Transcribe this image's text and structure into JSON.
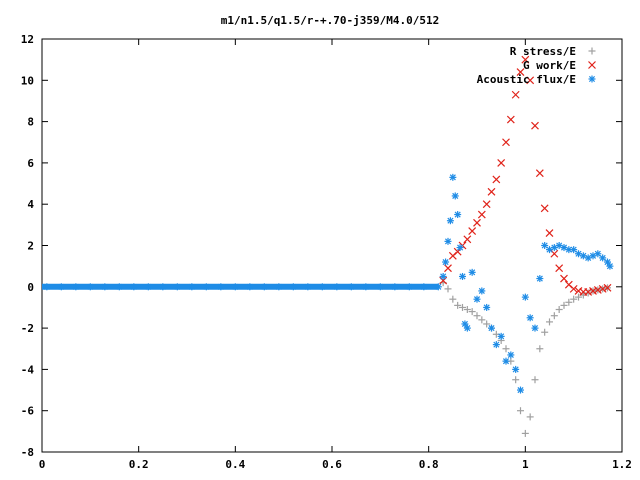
{
  "chart_data": {
    "type": "scatter",
    "title": "m1/n1.5/q1.5/r-+.70-j359/M4.0/512",
    "xlabel": "",
    "ylabel": "",
    "xlim": [
      0,
      1.2
    ],
    "ylim": [
      -8,
      12
    ],
    "x_ticks": [
      "0",
      "0.2",
      "0.4",
      "0.6",
      "0.8",
      "1",
      "1.2"
    ],
    "y_ticks": [
      "-8",
      "-6",
      "-4",
      "-2",
      "0",
      "2",
      "4",
      "6",
      "8",
      "10",
      "12"
    ],
    "legend": "top-right",
    "grid": false,
    "series": [
      {
        "name": "R stress/E",
        "marker": "plus",
        "color": "#a0a0a0",
        "points": [
          [
            0.83,
            0.2
          ],
          [
            0.84,
            -0.1
          ],
          [
            0.85,
            -0.6
          ],
          [
            0.86,
            -0.9
          ],
          [
            0.87,
            -1.0
          ],
          [
            0.88,
            -1.1
          ],
          [
            0.89,
            -1.2
          ],
          [
            0.9,
            -1.4
          ],
          [
            0.91,
            -1.6
          ],
          [
            0.92,
            -1.8
          ],
          [
            0.93,
            -2.0
          ],
          [
            0.94,
            -2.3
          ],
          [
            0.95,
            -2.6
          ],
          [
            0.96,
            -3.0
          ],
          [
            0.97,
            -3.6
          ],
          [
            0.98,
            -4.5
          ],
          [
            0.99,
            -6.0
          ],
          [
            1.0,
            -7.1
          ],
          [
            1.01,
            -6.3
          ],
          [
            1.02,
            -4.5
          ],
          [
            1.03,
            -3.0
          ],
          [
            1.04,
            -2.2
          ],
          [
            1.05,
            -1.7
          ],
          [
            1.06,
            -1.4
          ],
          [
            1.07,
            -1.1
          ],
          [
            1.08,
            -0.9
          ],
          [
            1.09,
            -0.75
          ],
          [
            1.1,
            -0.6
          ],
          [
            1.11,
            -0.5
          ],
          [
            1.12,
            -0.4
          ],
          [
            1.13,
            -0.3
          ],
          [
            1.14,
            -0.2
          ],
          [
            1.15,
            -0.15
          ],
          [
            1.16,
            -0.1
          ],
          [
            1.17,
            -0.05
          ]
        ]
      },
      {
        "name": "G work/E",
        "marker": "cross",
        "color": "#e0231a",
        "points": [
          [
            0.83,
            0.3
          ],
          [
            0.84,
            0.9
          ],
          [
            0.85,
            1.5
          ],
          [
            0.86,
            1.7
          ],
          [
            0.87,
            2.0
          ],
          [
            0.88,
            2.3
          ],
          [
            0.89,
            2.7
          ],
          [
            0.9,
            3.1
          ],
          [
            0.91,
            3.5
          ],
          [
            0.92,
            4.0
          ],
          [
            0.93,
            4.6
          ],
          [
            0.94,
            5.2
          ],
          [
            0.95,
            6.0
          ],
          [
            0.96,
            7.0
          ],
          [
            0.97,
            8.1
          ],
          [
            0.98,
            9.3
          ],
          [
            0.99,
            10.4
          ],
          [
            1.0,
            11.0
          ],
          [
            1.01,
            10.0
          ],
          [
            1.02,
            7.8
          ],
          [
            1.03,
            5.5
          ],
          [
            1.04,
            3.8
          ],
          [
            1.05,
            2.6
          ],
          [
            1.06,
            1.6
          ],
          [
            1.07,
            0.9
          ],
          [
            1.08,
            0.4
          ],
          [
            1.09,
            0.1
          ],
          [
            1.1,
            -0.1
          ],
          [
            1.11,
            -0.2
          ],
          [
            1.12,
            -0.25
          ],
          [
            1.13,
            -0.25
          ],
          [
            1.14,
            -0.2
          ],
          [
            1.15,
            -0.15
          ],
          [
            1.16,
            -0.1
          ],
          [
            1.17,
            -0.05
          ]
        ]
      },
      {
        "name": "Acoustic flux/E",
        "marker": "star",
        "color": "#1e8ce6",
        "points": [
          [
            0.01,
            0
          ],
          [
            0.04,
            0
          ],
          [
            0.07,
            0
          ],
          [
            0.1,
            0
          ],
          [
            0.13,
            0
          ],
          [
            0.16,
            0
          ],
          [
            0.19,
            0
          ],
          [
            0.22,
            0
          ],
          [
            0.25,
            0
          ],
          [
            0.28,
            0
          ],
          [
            0.31,
            0
          ],
          [
            0.34,
            0
          ],
          [
            0.37,
            0
          ],
          [
            0.4,
            0
          ],
          [
            0.43,
            0
          ],
          [
            0.46,
            0
          ],
          [
            0.49,
            0
          ],
          [
            0.52,
            0
          ],
          [
            0.55,
            0
          ],
          [
            0.58,
            0
          ],
          [
            0.61,
            0
          ],
          [
            0.64,
            0
          ],
          [
            0.67,
            0
          ],
          [
            0.7,
            0
          ],
          [
            0.73,
            0
          ],
          [
            0.76,
            0
          ],
          [
            0.79,
            0
          ],
          [
            0.82,
            0
          ],
          [
            0.83,
            0.5
          ],
          [
            0.835,
            1.2
          ],
          [
            0.84,
            2.2
          ],
          [
            0.845,
            3.2
          ],
          [
            0.85,
            5.3
          ],
          [
            0.855,
            4.4
          ],
          [
            0.86,
            3.5
          ],
          [
            0.865,
            1.9
          ],
          [
            0.87,
            0.5
          ],
          [
            0.875,
            -1.8
          ],
          [
            0.88,
            -2.0
          ],
          [
            0.89,
            0.7
          ],
          [
            0.9,
            -0.6
          ],
          [
            0.91,
            -0.2
          ],
          [
            0.92,
            -1.0
          ],
          [
            0.93,
            -2.0
          ],
          [
            0.94,
            -2.8
          ],
          [
            0.95,
            -2.4
          ],
          [
            0.96,
            -3.6
          ],
          [
            0.97,
            -3.3
          ],
          [
            0.98,
            -4.0
          ],
          [
            0.99,
            -5.0
          ],
          [
            1.0,
            -0.5
          ],
          [
            1.01,
            -1.5
          ],
          [
            1.02,
            -2.0
          ],
          [
            1.03,
            0.4
          ],
          [
            1.04,
            2.0
          ],
          [
            1.05,
            1.8
          ],
          [
            1.06,
            1.9
          ],
          [
            1.07,
            2.0
          ],
          [
            1.08,
            1.9
          ],
          [
            1.09,
            1.8
          ],
          [
            1.1,
            1.8
          ],
          [
            1.11,
            1.6
          ],
          [
            1.12,
            1.5
          ],
          [
            1.13,
            1.4
          ],
          [
            1.14,
            1.5
          ],
          [
            1.15,
            1.6
          ],
          [
            1.16,
            1.4
          ],
          [
            1.17,
            1.2
          ],
          [
            1.175,
            1.0
          ]
        ]
      }
    ]
  }
}
